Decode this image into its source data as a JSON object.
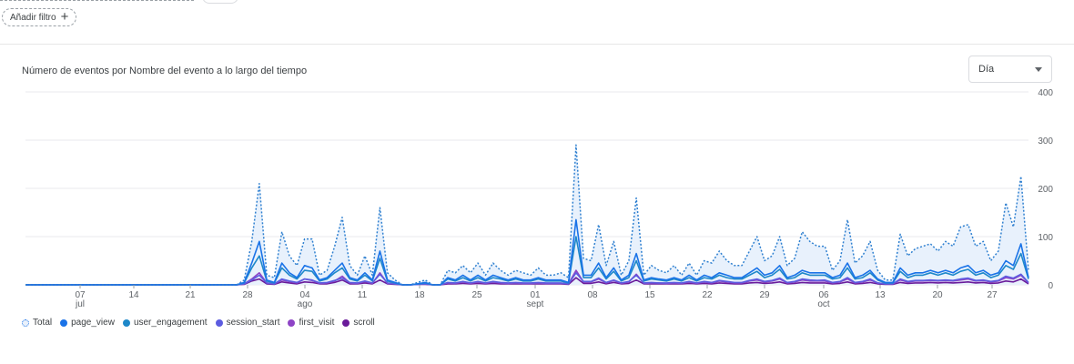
{
  "filter": {
    "add_label": "Añadir filtro",
    "plus_glyph": "+"
  },
  "card": {
    "title": "Número de eventos por Nombre del evento a lo largo del tiempo",
    "granularity": {
      "selected": "Día",
      "icon": "caret-down-icon"
    }
  },
  "colors": {
    "total": "#2f80d0",
    "total_fill": "#e8f1fc",
    "page_view": "#1a73e8",
    "user_engagement": "#1e88c9",
    "session_start": "#5c5ce0",
    "first_visit": "#8e44c6",
    "scroll": "#6a1b9a",
    "grid": "#e8eaed",
    "axis_text": "#5f6368"
  },
  "chart_data": {
    "type": "line",
    "ylim": [
      0,
      400
    ],
    "yticks": [
      "400",
      "300",
      "200",
      "100",
      "0"
    ],
    "xtick_labels": [
      {
        "day": "07",
        "month": "jul"
      },
      {
        "day": "14",
        "month": ""
      },
      {
        "day": "21",
        "month": ""
      },
      {
        "day": "28",
        "month": ""
      },
      {
        "day": "04",
        "month": "ago"
      },
      {
        "day": "11",
        "month": ""
      },
      {
        "day": "18",
        "month": ""
      },
      {
        "day": "25",
        "month": ""
      },
      {
        "day": "01",
        "month": "sept"
      },
      {
        "day": "08",
        "month": ""
      },
      {
        "day": "15",
        "month": ""
      },
      {
        "day": "22",
        "month": ""
      },
      {
        "day": "29",
        "month": ""
      },
      {
        "day": "06",
        "month": "oct"
      },
      {
        "day": "13",
        "month": ""
      },
      {
        "day": "20",
        "month": ""
      },
      {
        "day": "27",
        "month": ""
      }
    ],
    "series": [
      {
        "name": "Total",
        "key": "total",
        "values": [
          0,
          0,
          0,
          0,
          0,
          0,
          0,
          0,
          0,
          0,
          0,
          0,
          0,
          0,
          0,
          0,
          0,
          0,
          0,
          0,
          0,
          0,
          0,
          0,
          0,
          0,
          0,
          0,
          0,
          10,
          90,
          210,
          20,
          15,
          110,
          60,
          40,
          95,
          95,
          20,
          30,
          80,
          140,
          40,
          20,
          60,
          20,
          160,
          25,
          10,
          0,
          0,
          5,
          10,
          0,
          0,
          30,
          25,
          40,
          25,
          45,
          20,
          45,
          30,
          20,
          30,
          25,
          20,
          35,
          20,
          20,
          25,
          15,
          290,
          55,
          50,
          125,
          40,
          90,
          20,
          50,
          180,
          20,
          40,
          30,
          25,
          40,
          20,
          45,
          20,
          50,
          45,
          70,
          50,
          40,
          40,
          70,
          100,
          50,
          60,
          100,
          40,
          55,
          110,
          90,
          80,
          80,
          30,
          50,
          135,
          45,
          60,
          90,
          30,
          10,
          10,
          105,
          60,
          75,
          80,
          85,
          70,
          90,
          80,
          120,
          125,
          80,
          90,
          50,
          70,
          170,
          120,
          225,
          30
        ]
      },
      {
        "name": "page_view",
        "key": "page_view",
        "values": [
          0,
          0,
          0,
          0,
          0,
          0,
          0,
          0,
          0,
          0,
          0,
          0,
          0,
          0,
          0,
          0,
          0,
          0,
          0,
          0,
          0,
          0,
          0,
          0,
          0,
          0,
          0,
          0,
          0,
          5,
          45,
          90,
          10,
          5,
          45,
          25,
          15,
          40,
          35,
          10,
          15,
          30,
          45,
          15,
          10,
          25,
          10,
          70,
          10,
          5,
          0,
          0,
          2,
          5,
          0,
          0,
          15,
          10,
          20,
          10,
          20,
          10,
          20,
          15,
          10,
          15,
          10,
          10,
          15,
          10,
          10,
          10,
          5,
          135,
          20,
          20,
          45,
          15,
          35,
          10,
          20,
          65,
          10,
          15,
          12,
          10,
          15,
          10,
          20,
          10,
          20,
          15,
          25,
          20,
          15,
          15,
          25,
          35,
          20,
          25,
          40,
          15,
          20,
          30,
          25,
          25,
          25,
          15,
          20,
          45,
          15,
          20,
          30,
          12,
          5,
          5,
          35,
          20,
          25,
          25,
          30,
          25,
          30,
          25,
          35,
          40,
          25,
          30,
          20,
          25,
          50,
          40,
          85,
          15
        ]
      },
      {
        "name": "user_engagement",
        "key": "user_engagement",
        "values": [
          0,
          0,
          0,
          0,
          0,
          0,
          0,
          0,
          0,
          0,
          0,
          0,
          0,
          0,
          0,
          0,
          0,
          0,
          0,
          0,
          0,
          0,
          0,
          0,
          0,
          0,
          0,
          0,
          0,
          4,
          35,
          60,
          8,
          4,
          35,
          20,
          12,
          30,
          28,
          8,
          12,
          25,
          35,
          12,
          8,
          20,
          8,
          55,
          8,
          4,
          0,
          0,
          2,
          4,
          0,
          0,
          12,
          8,
          15,
          8,
          15,
          8,
          15,
          12,
          8,
          12,
          8,
          8,
          12,
          8,
          8,
          8,
          4,
          100,
          15,
          15,
          35,
          12,
          28,
          8,
          15,
          50,
          8,
          12,
          10,
          8,
          12,
          8,
          15,
          8,
          15,
          12,
          20,
          15,
          12,
          12,
          20,
          28,
          15,
          20,
          32,
          12,
          15,
          25,
          20,
          20,
          20,
          12,
          15,
          35,
          12,
          15,
          25,
          10,
          4,
          4,
          28,
          15,
          20,
          20,
          25,
          20,
          25,
          20,
          28,
          32,
          20,
          25,
          15,
          20,
          40,
          32,
          65,
          12
        ]
      },
      {
        "name": "session_start",
        "key": "session_start",
        "values": [
          0,
          0,
          0,
          0,
          0,
          0,
          0,
          0,
          0,
          0,
          0,
          0,
          0,
          0,
          0,
          0,
          0,
          0,
          0,
          0,
          0,
          0,
          0,
          0,
          0,
          0,
          0,
          0,
          0,
          2,
          10,
          20,
          4,
          2,
          12,
          8,
          5,
          12,
          10,
          4,
          5,
          9,
          14,
          5,
          4,
          8,
          4,
          22,
          4,
          2,
          0,
          0,
          1,
          2,
          0,
          0,
          5,
          4,
          7,
          4,
          7,
          4,
          7,
          5,
          4,
          5,
          4,
          4,
          5,
          4,
          4,
          4,
          2,
          25,
          7,
          7,
          14,
          5,
          10,
          4,
          7,
          20,
          4,
          5,
          4,
          4,
          5,
          4,
          7,
          4,
          7,
          5,
          9,
          7,
          5,
          5,
          9,
          12,
          7,
          9,
          14,
          5,
          7,
          12,
          10,
          9,
          10,
          5,
          7,
          15,
          5,
          7,
          12,
          4,
          2,
          2,
          12,
          7,
          9,
          9,
          10,
          9,
          10,
          9,
          12,
          14,
          9,
          10,
          7,
          9,
          18,
          14,
          22,
          5
        ]
      },
      {
        "name": "first_visit",
        "key": "first_visit",
        "values": [
          0,
          0,
          0,
          0,
          0,
          0,
          0,
          0,
          0,
          0,
          0,
          0,
          0,
          0,
          0,
          0,
          0,
          0,
          0,
          0,
          0,
          0,
          0,
          0,
          0,
          0,
          0,
          0,
          0,
          2,
          12,
          25,
          4,
          2,
          10,
          7,
          4,
          12,
          9,
          3,
          4,
          8,
          18,
          4,
          3,
          7,
          3,
          25,
          3,
          2,
          0,
          0,
          1,
          2,
          0,
          0,
          4,
          3,
          6,
          3,
          6,
          3,
          6,
          4,
          3,
          4,
          3,
          3,
          4,
          3,
          3,
          3,
          2,
          30,
          6,
          6,
          12,
          4,
          9,
          3,
          6,
          22,
          3,
          4,
          4,
          3,
          4,
          3,
          6,
          3,
          6,
          4,
          8,
          6,
          4,
          4,
          8,
          10,
          6,
          8,
          12,
          4,
          6,
          10,
          8,
          8,
          8,
          4,
          6,
          12,
          4,
          6,
          10,
          4,
          2,
          2,
          10,
          6,
          8,
          8,
          9,
          8,
          9,
          8,
          10,
          12,
          8,
          9,
          6,
          8,
          15,
          12,
          20,
          4
        ]
      },
      {
        "name": "scroll",
        "key": "scroll",
        "values": [
          0,
          0,
          0,
          0,
          0,
          0,
          0,
          0,
          0,
          0,
          0,
          0,
          0,
          0,
          0,
          0,
          0,
          0,
          0,
          0,
          0,
          0,
          0,
          0,
          0,
          0,
          0,
          0,
          0,
          1,
          8,
          12,
          2,
          1,
          6,
          4,
          2,
          6,
          5,
          2,
          2,
          5,
          10,
          2,
          2,
          4,
          2,
          10,
          2,
          1,
          0,
          0,
          1,
          1,
          0,
          0,
          2,
          2,
          3,
          2,
          3,
          2,
          3,
          2,
          2,
          2,
          2,
          2,
          2,
          2,
          2,
          2,
          1,
          15,
          3,
          3,
          6,
          2,
          5,
          2,
          3,
          10,
          2,
          2,
          2,
          2,
          2,
          2,
          3,
          2,
          3,
          2,
          4,
          3,
          2,
          2,
          4,
          5,
          3,
          4,
          6,
          2,
          3,
          5,
          4,
          4,
          4,
          2,
          3,
          6,
          2,
          3,
          5,
          2,
          1,
          1,
          5,
          3,
          4,
          4,
          5,
          4,
          5,
          4,
          5,
          6,
          4,
          5,
          3,
          4,
          8,
          6,
          12,
          2
        ]
      }
    ]
  },
  "legend": [
    {
      "label": "Total",
      "key": "total",
      "style": "dotted"
    },
    {
      "label": "page_view",
      "key": "page_view",
      "style": "solid"
    },
    {
      "label": "user_engagement",
      "key": "user_engagement",
      "style": "solid"
    },
    {
      "label": "session_start",
      "key": "session_start",
      "style": "solid"
    },
    {
      "label": "first_visit",
      "key": "first_visit",
      "style": "solid"
    },
    {
      "label": "scroll",
      "key": "scroll",
      "style": "solid"
    }
  ]
}
